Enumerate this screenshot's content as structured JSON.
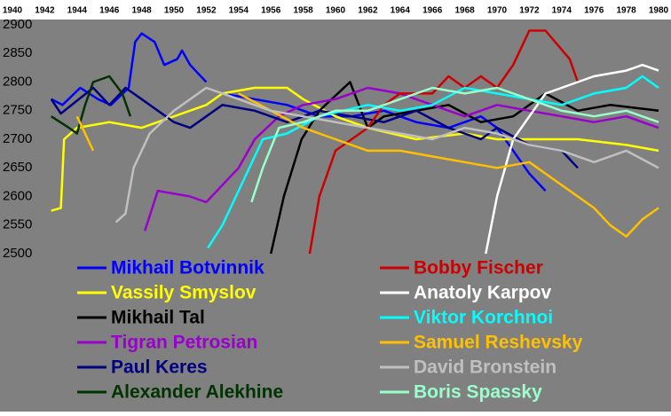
{
  "chart_data": {
    "type": "line",
    "xlim": [
      1940,
      1980
    ],
    "xticks": [
      1940,
      1942,
      1944,
      1946,
      1948,
      1950,
      1952,
      1954,
      1956,
      1958,
      1960,
      1962,
      1964,
      1966,
      1968,
      1970,
      1972,
      1974,
      1976,
      1978,
      1980
    ],
    "ylim": [
      2500,
      2900
    ],
    "yticks": [
      2500,
      2550,
      2600,
      2650,
      2700,
      2750,
      2800,
      2850,
      2900
    ],
    "series": [
      {
        "name": "Mikhail Botvinnik",
        "color": "#0000ff",
        "x": [
          1942.4,
          1943.1,
          1944.2,
          1945.3,
          1946.1,
          1947.2,
          1947.6,
          1948,
          1948.8,
          1949.4,
          1950.2,
          1950.5,
          1951,
          1952,
          1952.5,
          1953,
          1955,
          1957,
          1959,
          1961,
          1963,
          1965,
          1967,
          1969,
          1970,
          1971,
          1972,
          1973
        ],
        "values": [
          2770,
          2760,
          2790,
          2770,
          2760,
          2790,
          2870,
          2885,
          2870,
          2830,
          2840,
          2855,
          2830,
          2800,
          null,
          2780,
          2770,
          2760,
          2740,
          2740,
          2750,
          2730,
          2720,
          2740,
          2720,
          2680,
          2640,
          2610
        ]
      },
      {
        "name": "Vassily Smyslov",
        "color": "#ffff00",
        "x": [
          1942.4,
          1943,
          1943.2,
          1944,
          1946,
          1948,
          1950,
          1952,
          1953,
          1955,
          1957,
          1958,
          1960,
          1962,
          1965,
          1968,
          1970,
          1972,
          1975,
          1978,
          1980
        ],
        "values": [
          2575,
          2580,
          2700,
          2720,
          2730,
          2720,
          2740,
          2760,
          2780,
          2790,
          2790,
          2770,
          2740,
          2720,
          2700,
          2710,
          2700,
          2700,
          2700,
          2690,
          2680
        ]
      },
      {
        "name": "Mikhail Tal",
        "color": "#000000",
        "x": [
          1956,
          1956.8,
          1957.9,
          1959,
          1960.9,
          1962,
          1963,
          1965,
          1967,
          1969,
          1971,
          1973,
          1975,
          1977,
          1980
        ],
        "values": [
          2500,
          2600,
          2700,
          2750,
          2800,
          2720,
          2740,
          2750,
          2760,
          2730,
          2740,
          2780,
          2750,
          2760,
          2750
        ]
      },
      {
        "name": "Tigran Petrosian",
        "color": "#9900cc",
        "x": [
          1948.2,
          1949,
          1951,
          1952,
          1953,
          1954,
          1955,
          1956.5,
          1958,
          1960,
          1962,
          1964,
          1966,
          1968,
          1970,
          1972,
          1974,
          1976,
          1978,
          1980
        ],
        "values": [
          2540,
          2610,
          2600,
          2590,
          2620,
          2650,
          2700,
          2740,
          2760,
          2770,
          2790,
          2780,
          2760,
          2740,
          2760,
          2750,
          2740,
          2730,
          2740,
          2720
        ]
      },
      {
        "name": "Paul Keres",
        "color": "#000080",
        "x": [
          1942.4,
          1943,
          1945,
          1946,
          1947,
          1948,
          1950,
          1951,
          1953,
          1955,
          1957,
          1959,
          1961,
          1963,
          1965,
          1967,
          1969,
          1970,
          1972,
          1974,
          1975
        ],
        "values": [
          2770,
          2745,
          2790,
          2760,
          2790,
          2770,
          2730,
          2720,
          2760,
          2750,
          2730,
          2750,
          2740,
          2730,
          2750,
          2720,
          2700,
          2720,
          2690,
          2680,
          2650
        ]
      },
      {
        "name": "Alexander Alekhine",
        "color": "#003300",
        "x": [
          1942.4,
          1943.5,
          1944,
          1944.5,
          1945,
          1946,
          1946.8,
          1947.3
        ],
        "values": [
          2740,
          2720,
          2710,
          2760,
          2800,
          2810,
          2780,
          2740
        ]
      },
      {
        "name": "Bobby Fischer",
        "color": "#cc0000",
        "x": [
          1958.4,
          1959,
          1960,
          1961,
          1962,
          1963,
          1964,
          1966,
          1967,
          1968,
          1969,
          1970,
          1971,
          1972,
          1973,
          1974.5,
          1975
        ],
        "values": [
          2500,
          2600,
          2680,
          2700,
          2720,
          2760,
          2780,
          2780,
          2810,
          2790,
          2810,
          2790,
          2830,
          2890,
          2890,
          2840,
          2800
        ]
      },
      {
        "name": "Anatoly Karpov",
        "color": "#ffffff",
        "x": [
          1969.3,
          1970,
          1971,
          1972,
          1973,
          1974,
          1976,
          1978,
          1979,
          1980
        ],
        "values": [
          2500,
          2600,
          2700,
          2740,
          2780,
          2790,
          2810,
          2820,
          2830,
          2820
        ]
      },
      {
        "name": "Viktor Korchnoi",
        "color": "#00ffff",
        "x": [
          1952.1,
          1953,
          1954,
          1955.5,
          1957,
          1959,
          1962,
          1964,
          1966,
          1968,
          1970,
          1972,
          1974,
          1976,
          1978,
          1979,
          1980
        ],
        "values": [
          2510,
          2550,
          2610,
          2700,
          2710,
          2740,
          2760,
          2750,
          2760,
          2790,
          2780,
          2770,
          2760,
          2780,
          2790,
          2810,
          2790
        ]
      },
      {
        "name": "Samuel Reshevsky",
        "color": "#ffc000",
        "x": [
          1944,
          1945,
          1946,
          1954,
          1956,
          1958,
          1960,
          1962,
          1964,
          1966,
          1968,
          1970,
          1972,
          1974,
          1976,
          1977,
          1978,
          1979,
          1980
        ],
        "values": [
          2740,
          2680,
          null,
          2780,
          2750,
          2720,
          2700,
          2680,
          2680,
          2670,
          2660,
          2650,
          2660,
          2620,
          2580,
          2550,
          2530,
          2560,
          2580
        ]
      },
      {
        "name": "David Bronstein",
        "color": "#c0c0c0",
        "x": [
          1946.4,
          1947,
          1947.5,
          1948.5,
          1950,
          1952,
          1954,
          1956,
          1958,
          1960,
          1962,
          1964,
          1966,
          1968,
          1970,
          1972,
          1974,
          1976,
          1978,
          1980
        ],
        "values": [
          2555,
          2570,
          2650,
          2710,
          2750,
          2790,
          2770,
          2750,
          2740,
          2730,
          2720,
          2710,
          2700,
          2720,
          2710,
          2690,
          2680,
          2660,
          2680,
          2650
        ]
      },
      {
        "name": "Boris Spassky",
        "color": "#99ffcc",
        "x": [
          1954.8,
          1955.5,
          1956.5,
          1958,
          1960,
          1962,
          1964,
          1966,
          1968,
          1970,
          1972,
          1974,
          1976,
          1978,
          1980
        ],
        "values": [
          2590,
          2650,
          2720,
          2730,
          2750,
          2750,
          2770,
          2790,
          2780,
          2790,
          2770,
          2750,
          2740,
          2750,
          2730
        ]
      }
    ]
  }
}
